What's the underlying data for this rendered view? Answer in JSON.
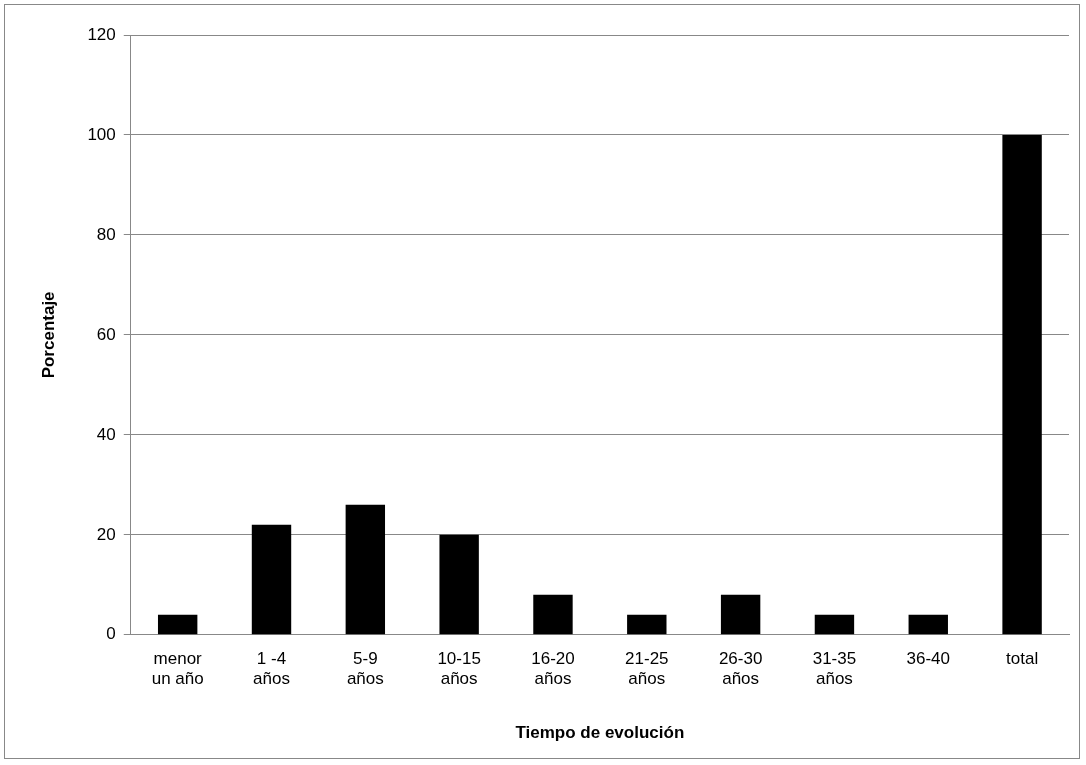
{
  "chart_data": {
    "type": "bar",
    "xlabel": "Tiempo de evolución",
    "ylabel": "Porcentaje",
    "categories": [
      "menor\nun año",
      "1 -4\naños",
      "5-9\naños",
      "10-15\naños",
      "16-20\naños",
      "21-25\naños",
      "26-30\naños",
      "31-35\naños",
      "36-40",
      "total"
    ],
    "values": [
      4,
      22,
      26,
      20,
      8,
      4,
      8,
      4,
      4,
      100
    ],
    "color": "#000000",
    "ylim": [
      0,
      120
    ],
    "yticks": [
      0,
      20,
      40,
      60,
      80,
      100,
      120
    ],
    "grid": "y",
    "legend": false
  }
}
